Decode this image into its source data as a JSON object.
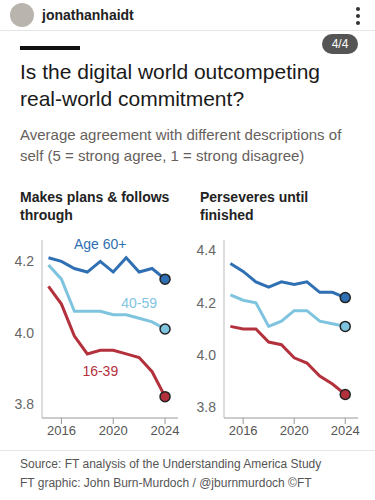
{
  "header": {
    "username": "jonathanhaidt",
    "page": "4/4"
  },
  "title": "Is the digital world outcompeting real-world commitment?",
  "subtitle": "Average agreement with different descriptions of self (5 = strong agree, 1 = strong disagree)",
  "source": "Source: FT analysis of the Understanding America Study",
  "credit": "FT graphic: John Burn-Murdoch / @jburnmurdoch ©FT",
  "chart_data": [
    {
      "type": "line",
      "title": "Makes plans & follows through",
      "x": [
        2015,
        2016,
        2017,
        2018,
        2019,
        2020,
        2021,
        2022,
        2023,
        2024
      ],
      "series": [
        {
          "name": "Age 60+",
          "color": "#2f6fb3",
          "values": [
            4.21,
            4.2,
            4.18,
            4.17,
            4.2,
            4.17,
            4.21,
            4.17,
            4.18,
            4.15
          ]
        },
        {
          "name": "40-59",
          "color": "#7fc4df",
          "values": [
            4.19,
            4.15,
            4.06,
            4.06,
            4.06,
            4.05,
            4.05,
            4.04,
            4.03,
            4.01
          ]
        },
        {
          "name": "16-39",
          "color": "#b3313d",
          "values": [
            4.13,
            4.08,
            3.99,
            3.94,
            3.95,
            3.95,
            3.94,
            3.93,
            3.89,
            3.82
          ]
        }
      ],
      "xlim": [
        2014.5,
        2025
      ],
      "xticks": [
        2016,
        2020,
        2024
      ],
      "ylim": [
        3.76,
        4.26
      ],
      "yticks": [
        3.8,
        {
          "value": 4,
          "label": "4.0"
        },
        4.2
      ],
      "grid": false
    },
    {
      "type": "line",
      "title": "Perseveres until finished",
      "x": [
        2015,
        2016,
        2017,
        2018,
        2019,
        2020,
        2021,
        2022,
        2023,
        2024
      ],
      "series": [
        {
          "color": "#2f6fb3",
          "values": [
            4.35,
            4.32,
            4.28,
            4.26,
            4.28,
            4.27,
            4.28,
            4.24,
            4.24,
            4.22
          ]
        },
        {
          "color": "#7fc4df",
          "values": [
            4.23,
            4.21,
            4.2,
            4.11,
            4.13,
            4.17,
            4.17,
            4.13,
            4.12,
            4.11
          ]
        },
        {
          "color": "#b3313d",
          "values": [
            4.11,
            4.1,
            4.1,
            4.05,
            4.04,
            3.99,
            3.97,
            3.92,
            3.89,
            3.85
          ]
        }
      ],
      "xlim": [
        2014.5,
        2025
      ],
      "xticks": [
        2016,
        2020,
        2024
      ],
      "ylim": [
        3.76,
        4.44
      ],
      "yticks": [
        3.8,
        {
          "value": 4,
          "label": "4.0"
        },
        4.2,
        4.4
      ],
      "grid": false
    }
  ]
}
